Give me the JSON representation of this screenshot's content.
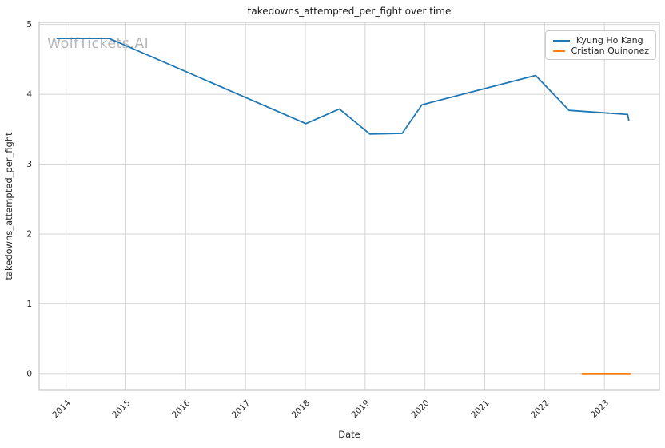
{
  "watermark": "WolfTickets.AI",
  "chart_data": {
    "type": "line",
    "title": "takedowns_attempted_per_fight over time",
    "xlabel": "Date",
    "ylabel": "takedowns_attempted_per_fight",
    "x_tick_labels": [
      "2014",
      "2015",
      "2016",
      "2017",
      "2018",
      "2019",
      "2020",
      "2021",
      "2022",
      "2023"
    ],
    "x_ticks": [
      2014,
      2015,
      2016,
      2017,
      2018,
      2019,
      2020,
      2021,
      2022,
      2023
    ],
    "y_tick_labels": [
      "0",
      "1",
      "2",
      "3",
      "4",
      "5"
    ],
    "y_ticks": [
      0,
      1,
      2,
      3,
      4,
      5
    ],
    "xlim": [
      2013.55,
      2023.92
    ],
    "ylim": [
      -0.23,
      5.03
    ],
    "grid": true,
    "legend_position": "upper right",
    "series": [
      {
        "name": "Kyung Ho Kang",
        "color": "#1f77b4",
        "x": [
          2013.84,
          2014.72,
          2018.01,
          2018.57,
          2019.08,
          2019.62,
          2019.95,
          2021.85,
          2022.41,
          2023.39,
          2023.41
        ],
        "y": [
          4.8,
          4.8,
          3.58,
          3.79,
          3.43,
          3.44,
          3.85,
          4.27,
          3.77,
          3.71,
          3.62
        ]
      },
      {
        "name": "Cristian Quinonez",
        "color": "#ff7f0e",
        "x": [
          2022.62,
          2023.44
        ],
        "y": [
          0.0,
          0.0
        ]
      }
    ]
  }
}
